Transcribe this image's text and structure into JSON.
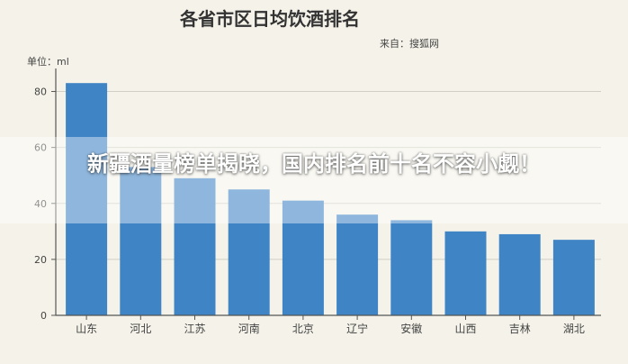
{
  "headline": "新疆酒量榜单揭晓，国内排名前十名不容小觑！",
  "colors": {
    "bar": "#3f84c5",
    "axis": "#555555",
    "grid": "#cfcfc4",
    "background": "#f5f3e9"
  },
  "chart_data": {
    "type": "bar",
    "title": "各省市区日均饮酒排名",
    "source": "来自：搜狐网",
    "unit_label": "单位：ml",
    "categories": [
      "山东",
      "河北",
      "江苏",
      "河南",
      "北京",
      "辽宁",
      "安徽",
      "山西",
      "吉林",
      "湖北"
    ],
    "values": [
      83,
      53,
      49,
      45,
      41,
      36,
      34,
      30,
      29,
      27
    ],
    "yticks": [
      0,
      20,
      40,
      60,
      80
    ],
    "ylim": [
      0,
      85
    ],
    "grid": true,
    "legend": "none"
  }
}
